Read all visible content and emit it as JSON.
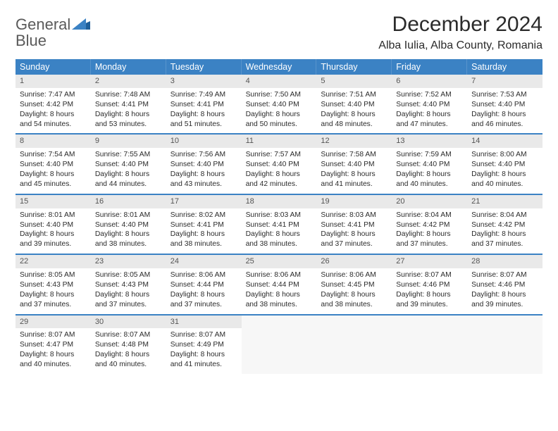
{
  "logo": {
    "word1": "General",
    "word2": "Blue"
  },
  "title": "December 2024",
  "location": "Alba Iulia, Alba County, Romania",
  "colors": {
    "header_bg": "#3b82c4",
    "header_text": "#ffffff",
    "row_divider": "#3b82c4",
    "daynum_bg": "#e9e9e9",
    "body_text": "#2b2b2b",
    "logo_gray": "#5a5a5a",
    "logo_blue": "#3b7fc4",
    "page_bg": "#ffffff"
  },
  "typography": {
    "title_fontsize": 30,
    "location_fontsize": 16,
    "dow_fontsize": 12.5,
    "cell_fontsize": 10.3
  },
  "days_of_week": [
    "Sunday",
    "Monday",
    "Tuesday",
    "Wednesday",
    "Thursday",
    "Friday",
    "Saturday"
  ],
  "weeks": [
    [
      {
        "n": "1",
        "sr": "7:47 AM",
        "ss": "4:42 PM",
        "dl": "8 hours and 54 minutes."
      },
      {
        "n": "2",
        "sr": "7:48 AM",
        "ss": "4:41 PM",
        "dl": "8 hours and 53 minutes."
      },
      {
        "n": "3",
        "sr": "7:49 AM",
        "ss": "4:41 PM",
        "dl": "8 hours and 51 minutes."
      },
      {
        "n": "4",
        "sr": "7:50 AM",
        "ss": "4:40 PM",
        "dl": "8 hours and 50 minutes."
      },
      {
        "n": "5",
        "sr": "7:51 AM",
        "ss": "4:40 PM",
        "dl": "8 hours and 48 minutes."
      },
      {
        "n": "6",
        "sr": "7:52 AM",
        "ss": "4:40 PM",
        "dl": "8 hours and 47 minutes."
      },
      {
        "n": "7",
        "sr": "7:53 AM",
        "ss": "4:40 PM",
        "dl": "8 hours and 46 minutes."
      }
    ],
    [
      {
        "n": "8",
        "sr": "7:54 AM",
        "ss": "4:40 PM",
        "dl": "8 hours and 45 minutes."
      },
      {
        "n": "9",
        "sr": "7:55 AM",
        "ss": "4:40 PM",
        "dl": "8 hours and 44 minutes."
      },
      {
        "n": "10",
        "sr": "7:56 AM",
        "ss": "4:40 PM",
        "dl": "8 hours and 43 minutes."
      },
      {
        "n": "11",
        "sr": "7:57 AM",
        "ss": "4:40 PM",
        "dl": "8 hours and 42 minutes."
      },
      {
        "n": "12",
        "sr": "7:58 AM",
        "ss": "4:40 PM",
        "dl": "8 hours and 41 minutes."
      },
      {
        "n": "13",
        "sr": "7:59 AM",
        "ss": "4:40 PM",
        "dl": "8 hours and 40 minutes."
      },
      {
        "n": "14",
        "sr": "8:00 AM",
        "ss": "4:40 PM",
        "dl": "8 hours and 40 minutes."
      }
    ],
    [
      {
        "n": "15",
        "sr": "8:01 AM",
        "ss": "4:40 PM",
        "dl": "8 hours and 39 minutes."
      },
      {
        "n": "16",
        "sr": "8:01 AM",
        "ss": "4:40 PM",
        "dl": "8 hours and 38 minutes."
      },
      {
        "n": "17",
        "sr": "8:02 AM",
        "ss": "4:41 PM",
        "dl": "8 hours and 38 minutes."
      },
      {
        "n": "18",
        "sr": "8:03 AM",
        "ss": "4:41 PM",
        "dl": "8 hours and 38 minutes."
      },
      {
        "n": "19",
        "sr": "8:03 AM",
        "ss": "4:41 PM",
        "dl": "8 hours and 37 minutes."
      },
      {
        "n": "20",
        "sr": "8:04 AM",
        "ss": "4:42 PM",
        "dl": "8 hours and 37 minutes."
      },
      {
        "n": "21",
        "sr": "8:04 AM",
        "ss": "4:42 PM",
        "dl": "8 hours and 37 minutes."
      }
    ],
    [
      {
        "n": "22",
        "sr": "8:05 AM",
        "ss": "4:43 PM",
        "dl": "8 hours and 37 minutes."
      },
      {
        "n": "23",
        "sr": "8:05 AM",
        "ss": "4:43 PM",
        "dl": "8 hours and 37 minutes."
      },
      {
        "n": "24",
        "sr": "8:06 AM",
        "ss": "4:44 PM",
        "dl": "8 hours and 37 minutes."
      },
      {
        "n": "25",
        "sr": "8:06 AM",
        "ss": "4:44 PM",
        "dl": "8 hours and 38 minutes."
      },
      {
        "n": "26",
        "sr": "8:06 AM",
        "ss": "4:45 PM",
        "dl": "8 hours and 38 minutes."
      },
      {
        "n": "27",
        "sr": "8:07 AM",
        "ss": "4:46 PM",
        "dl": "8 hours and 39 minutes."
      },
      {
        "n": "28",
        "sr": "8:07 AM",
        "ss": "4:46 PM",
        "dl": "8 hours and 39 minutes."
      }
    ],
    [
      {
        "n": "29",
        "sr": "8:07 AM",
        "ss": "4:47 PM",
        "dl": "8 hours and 40 minutes."
      },
      {
        "n": "30",
        "sr": "8:07 AM",
        "ss": "4:48 PM",
        "dl": "8 hours and 40 minutes."
      },
      {
        "n": "31",
        "sr": "8:07 AM",
        "ss": "4:49 PM",
        "dl": "8 hours and 41 minutes."
      },
      null,
      null,
      null,
      null
    ]
  ],
  "labels": {
    "sunrise_prefix": "Sunrise: ",
    "sunset_prefix": "Sunset: ",
    "daylight_prefix": "Daylight: "
  }
}
